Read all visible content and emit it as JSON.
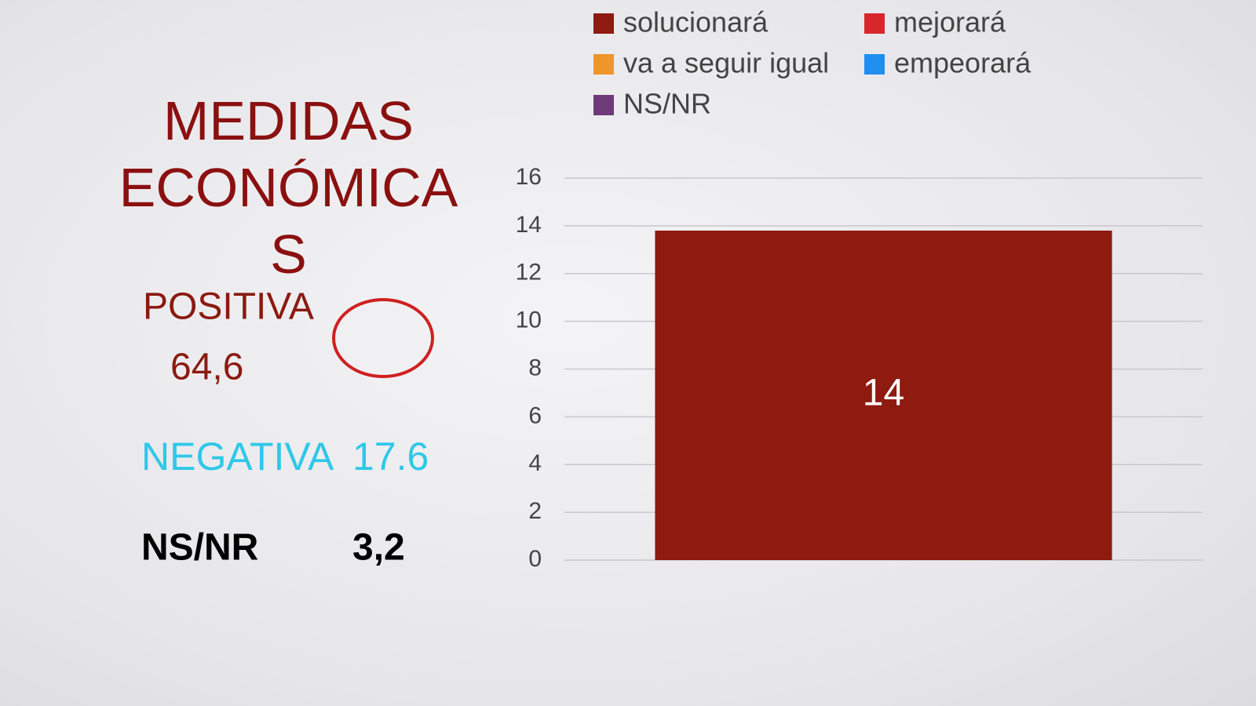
{
  "slide": {
    "title": "MEDIDAS ECONÓMICAS",
    "positive_label": "POSITIVA",
    "positive_value": "64,6",
    "negative_label": "NEGATIVA",
    "negative_value": "17.6",
    "nsnr_label": "NS/NR",
    "nsnr_value": "3,2"
  },
  "chart_data": {
    "type": "bar",
    "categories": [
      null
    ],
    "series": [
      {
        "name": "solucionará",
        "color": "#8e1a10",
        "values": [
          13.8
        ],
        "value_labels": [
          "14"
        ]
      },
      {
        "name": "mejorará",
        "color": "#d9262b",
        "values": [
          null
        ]
      },
      {
        "name": "va a seguir igual",
        "color": "#f0952a",
        "values": [
          null
        ]
      },
      {
        "name": "empeorará",
        "color": "#1e8fee",
        "values": [
          null
        ]
      },
      {
        "name": "NS/NR",
        "color": "#6e3a7a",
        "values": [
          null
        ]
      }
    ],
    "ylim": [
      0,
      16
    ],
    "yticks": [
      0,
      2,
      4,
      6,
      8,
      10,
      12,
      14,
      16
    ],
    "grid": true,
    "legend": "top"
  }
}
